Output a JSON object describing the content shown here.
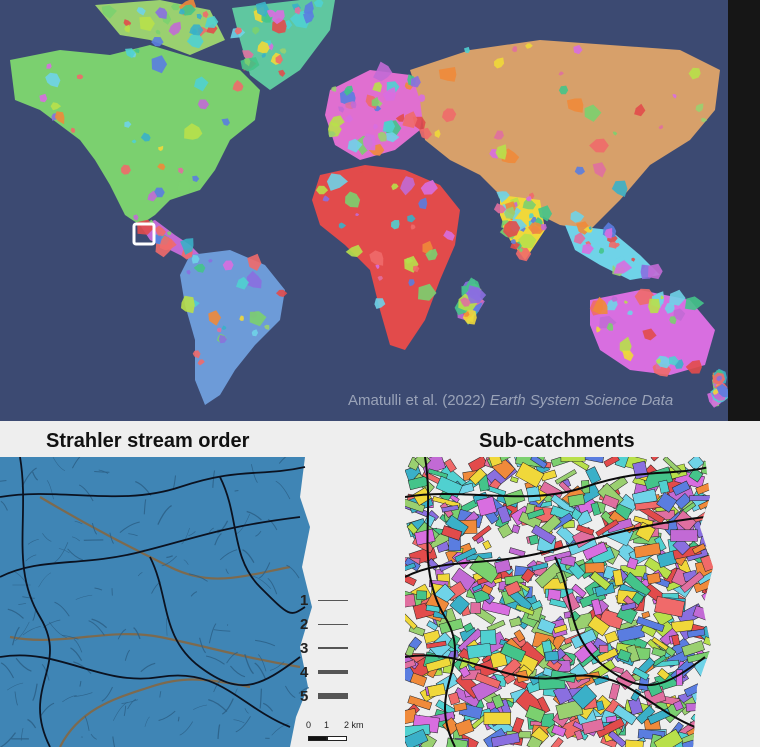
{
  "map": {
    "credit_authors": "Amatulli et al. (2022)",
    "credit_journal": "Earth System Science Data",
    "ocean_color": "#3c4a72",
    "highlight_box_color": "#ffffff"
  },
  "left_panel": {
    "title": "Strahler stream order",
    "basin_color": "#3f85b5",
    "stream_color": "#7d6a4e"
  },
  "right_panel": {
    "title": "Sub-catchments"
  },
  "legend": {
    "items": [
      {
        "label": "1",
        "width": 1
      },
      {
        "label": "2",
        "width": 1.5
      },
      {
        "label": "3",
        "width": 2.5
      },
      {
        "label": "4",
        "width": 4
      },
      {
        "label": "5",
        "width": 6
      }
    ]
  },
  "scale_bar": {
    "labels": [
      "0",
      "1",
      "2 km"
    ]
  }
}
